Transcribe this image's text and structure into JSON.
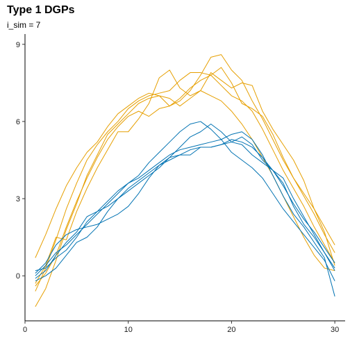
{
  "chart_data": {
    "type": "line",
    "title": "Type 1 DGPs",
    "subtitle": "i_sim = 7",
    "xlabel": "",
    "ylabel": "",
    "xlim": [
      0,
      31
    ],
    "ylim": [
      -1.75,
      9.4
    ],
    "x_ticks": [
      0,
      10,
      20,
      30
    ],
    "y_ticks": [
      0,
      3,
      6,
      9
    ],
    "grid": false,
    "legend": "none",
    "colors": {
      "orange": "#E69F00",
      "blue": "#0072B2"
    },
    "x": [
      1,
      2,
      3,
      4,
      5,
      6,
      7,
      8,
      9,
      10,
      11,
      12,
      13,
      14,
      15,
      16,
      17,
      18,
      19,
      20,
      21,
      22,
      23,
      24,
      25,
      26,
      27,
      28,
      29,
      30
    ],
    "series": [
      {
        "color": "orange",
        "values": [
          -1.2,
          -0.5,
          0.6,
          1.8,
          2.8,
          3.9,
          4.7,
          5.5,
          5.9,
          6.3,
          6.7,
          6.9,
          7.0,
          6.9,
          6.6,
          6.9,
          7.2,
          7.0,
          6.8,
          6.4,
          5.9,
          5.3,
          4.6,
          3.9,
          3.1,
          2.3,
          1.5,
          0.8,
          0.3,
          0.2
        ]
      },
      {
        "color": "orange",
        "values": [
          0.7,
          1.6,
          2.6,
          3.5,
          4.2,
          4.8,
          5.2,
          5.8,
          6.3,
          6.6,
          6.9,
          7.1,
          7.0,
          6.6,
          6.9,
          7.3,
          7.6,
          7.8,
          7.4,
          7.0,
          6.8,
          6.4,
          5.7,
          4.9,
          4.1,
          3.4,
          2.7,
          1.9,
          1.2,
          0.5
        ]
      },
      {
        "color": "orange",
        "values": [
          -0.4,
          0.1,
          0.8,
          1.9,
          2.9,
          3.8,
          4.6,
          5.3,
          5.8,
          6.2,
          6.4,
          6.2,
          6.5,
          6.6,
          6.8,
          7.2,
          7.8,
          8.5,
          8.6,
          8.0,
          7.6,
          6.8,
          6.1,
          5.3,
          4.5,
          3.8,
          3.2,
          2.6,
          1.9,
          1.2
        ]
      },
      {
        "color": "orange",
        "values": [
          -0.6,
          0.3,
          1.4,
          2.6,
          3.6,
          4.5,
          5.1,
          5.6,
          6.0,
          6.5,
          6.8,
          7.0,
          7.1,
          7.2,
          7.6,
          7.9,
          7.9,
          7.8,
          8.1,
          7.5,
          6.7,
          6.5,
          6.2,
          5.5,
          4.6,
          3.8,
          3.1,
          2.4,
          1.6,
          0.9
        ]
      },
      {
        "color": "orange",
        "values": [
          -0.3,
          0.4,
          1.5,
          1.4,
          2.5,
          3.4,
          4.2,
          4.9,
          5.6,
          5.6,
          6.1,
          6.7,
          7.7,
          8.0,
          7.3,
          7.0,
          7.2,
          7.9,
          7.6,
          7.3,
          7.5,
          7.4,
          6.4,
          5.7,
          5.1,
          4.5,
          3.7,
          2.6,
          1.7,
          0.4
        ]
      },
      {
        "color": "blue",
        "values": [
          0.2,
          0.3,
          0.7,
          1.0,
          1.5,
          2.1,
          2.5,
          2.9,
          3.3,
          3.6,
          3.8,
          4.1,
          4.4,
          4.7,
          4.9,
          5.0,
          5.1,
          5.2,
          5.3,
          5.5,
          5.6,
          5.3,
          4.7,
          3.9,
          3.1,
          2.4,
          1.9,
          1.3,
          0.7,
          -0.8
        ]
      },
      {
        "color": "blue",
        "values": [
          -0.1,
          0.2,
          0.8,
          1.3,
          1.7,
          2.3,
          2.5,
          2.7,
          3.0,
          3.3,
          3.6,
          3.9,
          4.2,
          4.6,
          4.7,
          4.9,
          5.0,
          5.0,
          5.1,
          5.2,
          5.4,
          5.1,
          4.5,
          4.1,
          3.6,
          2.7,
          2.0,
          1.5,
          0.9,
          0.3
        ]
      },
      {
        "color": "blue",
        "values": [
          0.1,
          0.5,
          1.2,
          1.6,
          1.8,
          1.9,
          2.0,
          2.2,
          2.4,
          2.7,
          3.2,
          3.8,
          4.3,
          4.6,
          5.0,
          5.4,
          5.6,
          5.9,
          5.6,
          5.2,
          5.1,
          4.7,
          4.4,
          4.1,
          3.5,
          2.8,
          2.2,
          1.7,
          1.1,
          0.5
        ]
      },
      {
        "color": "blue",
        "values": [
          -0.2,
          0.0,
          0.3,
          0.8,
          1.3,
          1.5,
          1.9,
          2.5,
          3.0,
          3.4,
          3.7,
          4.0,
          4.3,
          4.5,
          4.7,
          4.7,
          5.0,
          5.0,
          5.1,
          5.3,
          5.2,
          5.0,
          4.6,
          4.1,
          3.8,
          3.0,
          2.3,
          1.6,
          0.9,
          0.2
        ]
      },
      {
        "color": "blue",
        "values": [
          0.0,
          0.4,
          0.9,
          1.2,
          1.6,
          2.0,
          2.4,
          2.8,
          3.2,
          3.6,
          3.9,
          4.4,
          4.8,
          5.2,
          5.6,
          5.9,
          6.0,
          5.7,
          5.3,
          4.8,
          4.5,
          4.2,
          3.8,
          3.2,
          2.6,
          2.1,
          1.6,
          1.1,
          0.6,
          -0.2
        ]
      }
    ]
  }
}
